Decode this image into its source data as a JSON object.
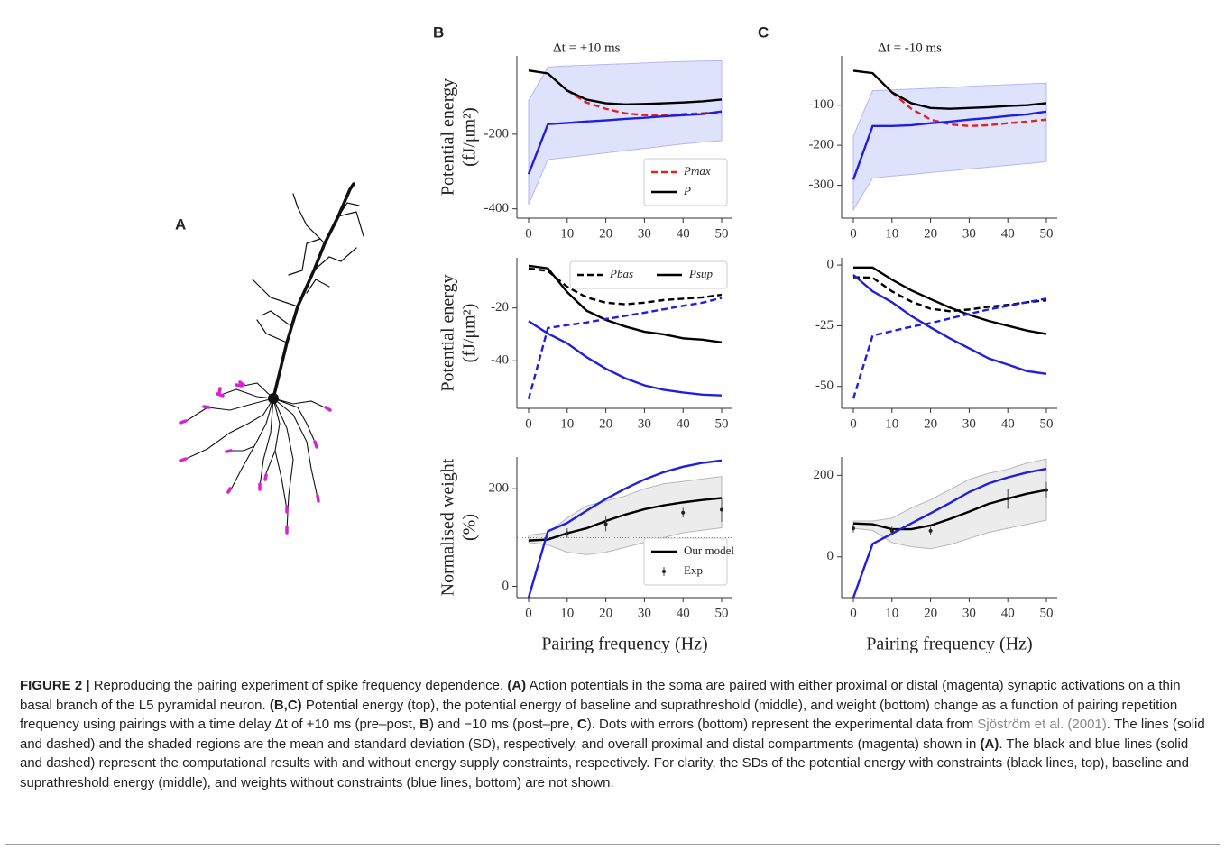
{
  "panel_a": {
    "label": "A"
  },
  "chart_data": [
    {
      "type": "line",
      "panel": "B",
      "title": "Δt = +10 ms",
      "ylabel": [
        "Potential energy",
        "(fJ/μm²)"
      ],
      "x": [
        0,
        5,
        10,
        15,
        20,
        25,
        30,
        35,
        40,
        45,
        50
      ],
      "xlim": [
        0,
        50
      ],
      "xticks": [
        0,
        10,
        20,
        30,
        40,
        50
      ],
      "ylim": [
        -425,
        10
      ],
      "yticks": [
        -400,
        -200
      ],
      "legend": "lower right",
      "bands": [
        {
          "color": "#dfe2fb",
          "lower": [
            -388,
            -268,
            -262,
            -256,
            -250,
            -244,
            -238,
            -232,
            -226,
            -221,
            -217
          ],
          "upper": [
            -110,
            -20,
            -17,
            -15,
            -13,
            -11,
            -9,
            -7,
            -5,
            -4,
            -3
          ]
        }
      ],
      "series": [
        {
          "name": "Pmax",
          "color": "#e8211c",
          "style": "dashed",
          "values": [
            null,
            null,
            -83,
            -115,
            -132,
            -144,
            -149,
            -149,
            -146,
            -144,
            -141
          ]
        },
        {
          "name": "P",
          "color": "#000000",
          "style": "solid",
          "values": [
            -29,
            -37,
            -83,
            -107,
            -117,
            -120,
            -119,
            -117,
            -115,
            -112,
            -107
          ]
        },
        {
          "color": "#1f1fe0",
          "style": "solid",
          "values": [
            -307,
            -173,
            -170,
            -166,
            -163,
            -159,
            -156,
            -152,
            -149,
            -146,
            -139
          ]
        }
      ]
    },
    {
      "type": "line",
      "ylabel": [
        "Potential energy",
        "(fJ/μm²)"
      ],
      "x": [
        0,
        5,
        10,
        15,
        20,
        25,
        30,
        35,
        40,
        45,
        50
      ],
      "xlim": [
        0,
        50
      ],
      "xticks": [
        0,
        10,
        20,
        30,
        40,
        50
      ],
      "ylim": [
        -58,
        -1
      ],
      "yticks": [
        -40,
        -20
      ],
      "legend": "upper right",
      "legend_columns": 2,
      "series": [
        {
          "name": "Pbas",
          "color": "#000000",
          "style": "dashed",
          "values": [
            -5,
            -6,
            -12,
            -16,
            -18,
            -18.6,
            -18,
            -17,
            -16.5,
            -16,
            -15
          ]
        },
        {
          "name": "Psup",
          "color": "#000000",
          "style": "solid",
          "values": [
            -4,
            -5,
            -14,
            -21,
            -24.5,
            -27,
            -29,
            -30,
            -31.5,
            -32,
            -33
          ]
        },
        {
          "color": "#1f1fe0",
          "style": "solid",
          "values": [
            -25,
            -29.7,
            -33.4,
            -38.6,
            -43,
            -46.6,
            -49.3,
            -51,
            -52,
            -52.8,
            -53.1
          ]
        },
        {
          "color": "#1f1fe0",
          "style": "dashed",
          "values": [
            -54.5,
            -27.6,
            -26.5,
            -25.5,
            -24.2,
            -23,
            -21.8,
            -20.5,
            -19.2,
            -18,
            -16.2
          ]
        }
      ]
    },
    {
      "type": "line",
      "ylabel": [
        "Normalised weight",
        "(%)"
      ],
      "xlabel": "Pairing frequency (Hz)",
      "x": [
        0,
        5,
        10,
        15,
        20,
        25,
        30,
        35,
        40,
        45,
        50
      ],
      "xlim": [
        0,
        50
      ],
      "xticks": [
        0,
        10,
        20,
        30,
        40,
        50
      ],
      "ylim": [
        -23,
        265
      ],
      "yticks": [
        0,
        200
      ],
      "hline": 100,
      "legend": "lower right",
      "bands": [
        {
          "color": "#ececec",
          "lower": [
            90,
            85,
            70,
            65,
            70,
            80,
            90,
            100,
            110,
            115,
            120
          ],
          "upper": [
            105,
            110,
            140,
            165,
            175,
            185,
            200,
            210,
            215,
            220,
            225
          ]
        }
      ],
      "series": [
        {
          "name": "Our model",
          "color": "#000000",
          "style": "solid",
          "values": [
            94,
            96,
            109,
            119,
            134,
            147,
            158,
            166,
            172,
            177,
            181
          ]
        },
        {
          "color": "#1f1fe0",
          "style": "solid",
          "values": [
            -23,
            113,
            130,
            155,
            179,
            200,
            219,
            234,
            245,
            253,
            258
          ]
        }
      ],
      "points": {
        "name": "Exp",
        "x": [
          10,
          20,
          40,
          50
        ],
        "values": [
          109,
          128,
          151,
          157
        ],
        "errors": [
          10,
          15,
          10,
          25
        ]
      }
    },
    {
      "type": "line",
      "panel": "C",
      "title": "Δt = -10 ms",
      "x": [
        0,
        5,
        10,
        15,
        20,
        25,
        30,
        35,
        40,
        45,
        50
      ],
      "xlim": [
        0,
        50
      ],
      "xticks": [
        0,
        10,
        20,
        30,
        40,
        50
      ],
      "ylim": [
        -382,
        23
      ],
      "yticks": [
        -300,
        -200,
        -100
      ],
      "bands": [
        {
          "color": "#dfe2fb",
          "lower": [
            -361,
            -282,
            -277,
            -273,
            -268,
            -264,
            -259,
            -255,
            -250,
            -246,
            -241
          ],
          "upper": [
            -177,
            -64,
            -62,
            -60,
            -58,
            -56,
            -53,
            -51,
            -49,
            -47,
            -45
          ]
        }
      ],
      "series": [
        {
          "color": "#e8211c",
          "style": "dashed",
          "values": [
            null,
            null,
            -68,
            -109,
            -136,
            -148,
            -152,
            -150,
            -145,
            -141,
            -136
          ]
        },
        {
          "color": "#000000",
          "style": "solid",
          "values": [
            -14,
            -20,
            -68,
            -95,
            -107,
            -109,
            -107,
            -105,
            -102,
            -100,
            -95
          ]
        },
        {
          "color": "#1f1fe0",
          "style": "solid",
          "values": [
            -286,
            -152,
            -152,
            -150,
            -145,
            -141,
            -136,
            -132,
            -127,
            -123,
            -116
          ]
        }
      ]
    },
    {
      "type": "line",
      "x": [
        0,
        5,
        10,
        15,
        20,
        25,
        30,
        35,
        40,
        45,
        50
      ],
      "xlim": [
        0,
        50
      ],
      "xticks": [
        0,
        10,
        20,
        30,
        40,
        50
      ],
      "ylim": [
        -59,
        3
      ],
      "yticks": [
        -50,
        -25,
        0
      ],
      "series": [
        {
          "color": "#000000",
          "style": "dashed",
          "values": [
            -5,
            -5.2,
            -10.8,
            -15,
            -18,
            -19,
            -18.3,
            -17.2,
            -16.4,
            -15.3,
            -14.5
          ]
        },
        {
          "color": "#000000",
          "style": "solid",
          "values": [
            -1,
            -1,
            -6,
            -10.4,
            -14,
            -17.5,
            -20.5,
            -23,
            -25,
            -27,
            -28.4
          ]
        },
        {
          "color": "#1f1fe0",
          "style": "solid",
          "values": [
            -4,
            -10.8,
            -15.3,
            -21,
            -25.7,
            -30.2,
            -34.3,
            -38.4,
            -41,
            -43.7,
            -44.8
          ]
        },
        {
          "color": "#1f1fe0",
          "style": "dashed",
          "values": [
            -55,
            -29,
            -27.2,
            -25.4,
            -23.9,
            -22,
            -20.1,
            -18.3,
            -16.8,
            -15.3,
            -13.8
          ]
        }
      ]
    },
    {
      "type": "line",
      "xlabel": "Pairing frequency (Hz)",
      "x": [
        0,
        5,
        10,
        15,
        20,
        25,
        30,
        35,
        40,
        45,
        50
      ],
      "xlim": [
        0,
        50
      ],
      "xticks": [
        0,
        10,
        20,
        30,
        40,
        50
      ],
      "ylim": [
        -100,
        245
      ],
      "yticks": [
        0,
        200
      ],
      "hline": 100,
      "bands": [
        {
          "color": "#ececec",
          "lower": [
            70,
            65,
            35,
            25,
            20,
            30,
            45,
            60,
            70,
            80,
            90
          ],
          "upper": [
            88,
            88,
            95,
            120,
            140,
            165,
            190,
            205,
            215,
            230,
            240
          ]
        }
      ],
      "series": [
        {
          "color": "#000000",
          "style": "solid",
          "values": [
            82,
            80,
            68,
            68,
            77,
            93,
            111,
            130,
            143,
            155,
            164
          ]
        },
        {
          "color": "#1f1fe0",
          "style": "solid",
          "values": [
            -100,
            32,
            57,
            82,
            107,
            132,
            159,
            180,
            195,
            207,
            216
          ]
        }
      ],
      "points": {
        "x": [
          0,
          10,
          20,
          40,
          50
        ],
        "values": [
          70,
          64,
          64,
          143,
          164
        ],
        "errors": [
          10,
          10,
          10,
          25,
          20
        ]
      }
    }
  ],
  "caption": [
    {
      "text": "FIGURE 2 |",
      "style": "bold"
    },
    {
      "text": " Reproducing the pairing experiment of spike frequency dependence. "
    },
    {
      "text": "(A)",
      "style": "bold"
    },
    {
      "text": " Action potentials in the soma are paired with either proximal or distal (magenta) synaptic activations on a thin basal branch of the L5 pyramidal neuron. "
    },
    {
      "text": "(B,C)",
      "style": "bold"
    },
    {
      "text": " Potential energy (top), the potential energy of baseline and suprathreshold (middle), and weight (bottom) change as a function of pairing repetition frequency using pairings with a time delay Δt of +10 ms (pre–post, "
    },
    {
      "text": "B",
      "style": "bold"
    },
    {
      "text": ") and −10 ms (post–pre, "
    },
    {
      "text": "C",
      "style": "bold"
    },
    {
      "text": "). Dots with errors (bottom) represent the experimental data from "
    },
    {
      "text": "Sjöström et al. (2001)",
      "style": "link"
    },
    {
      "text": ". The lines (solid and dashed) and the shaded regions are the mean and standard deviation (SD), respectively, and overall proximal and distal compartments (magenta) shown in "
    },
    {
      "text": "(A)",
      "style": "bold"
    },
    {
      "text": ". The black and blue lines (solid and dashed) represent the computational results with and without energy supply constraints, respectively. For clarity, the SDs of the potential energy with constraints (black lines, top), baseline and suprathreshold energy (middle), and weights without constraints (blue lines, bottom) are not shown."
    }
  ]
}
